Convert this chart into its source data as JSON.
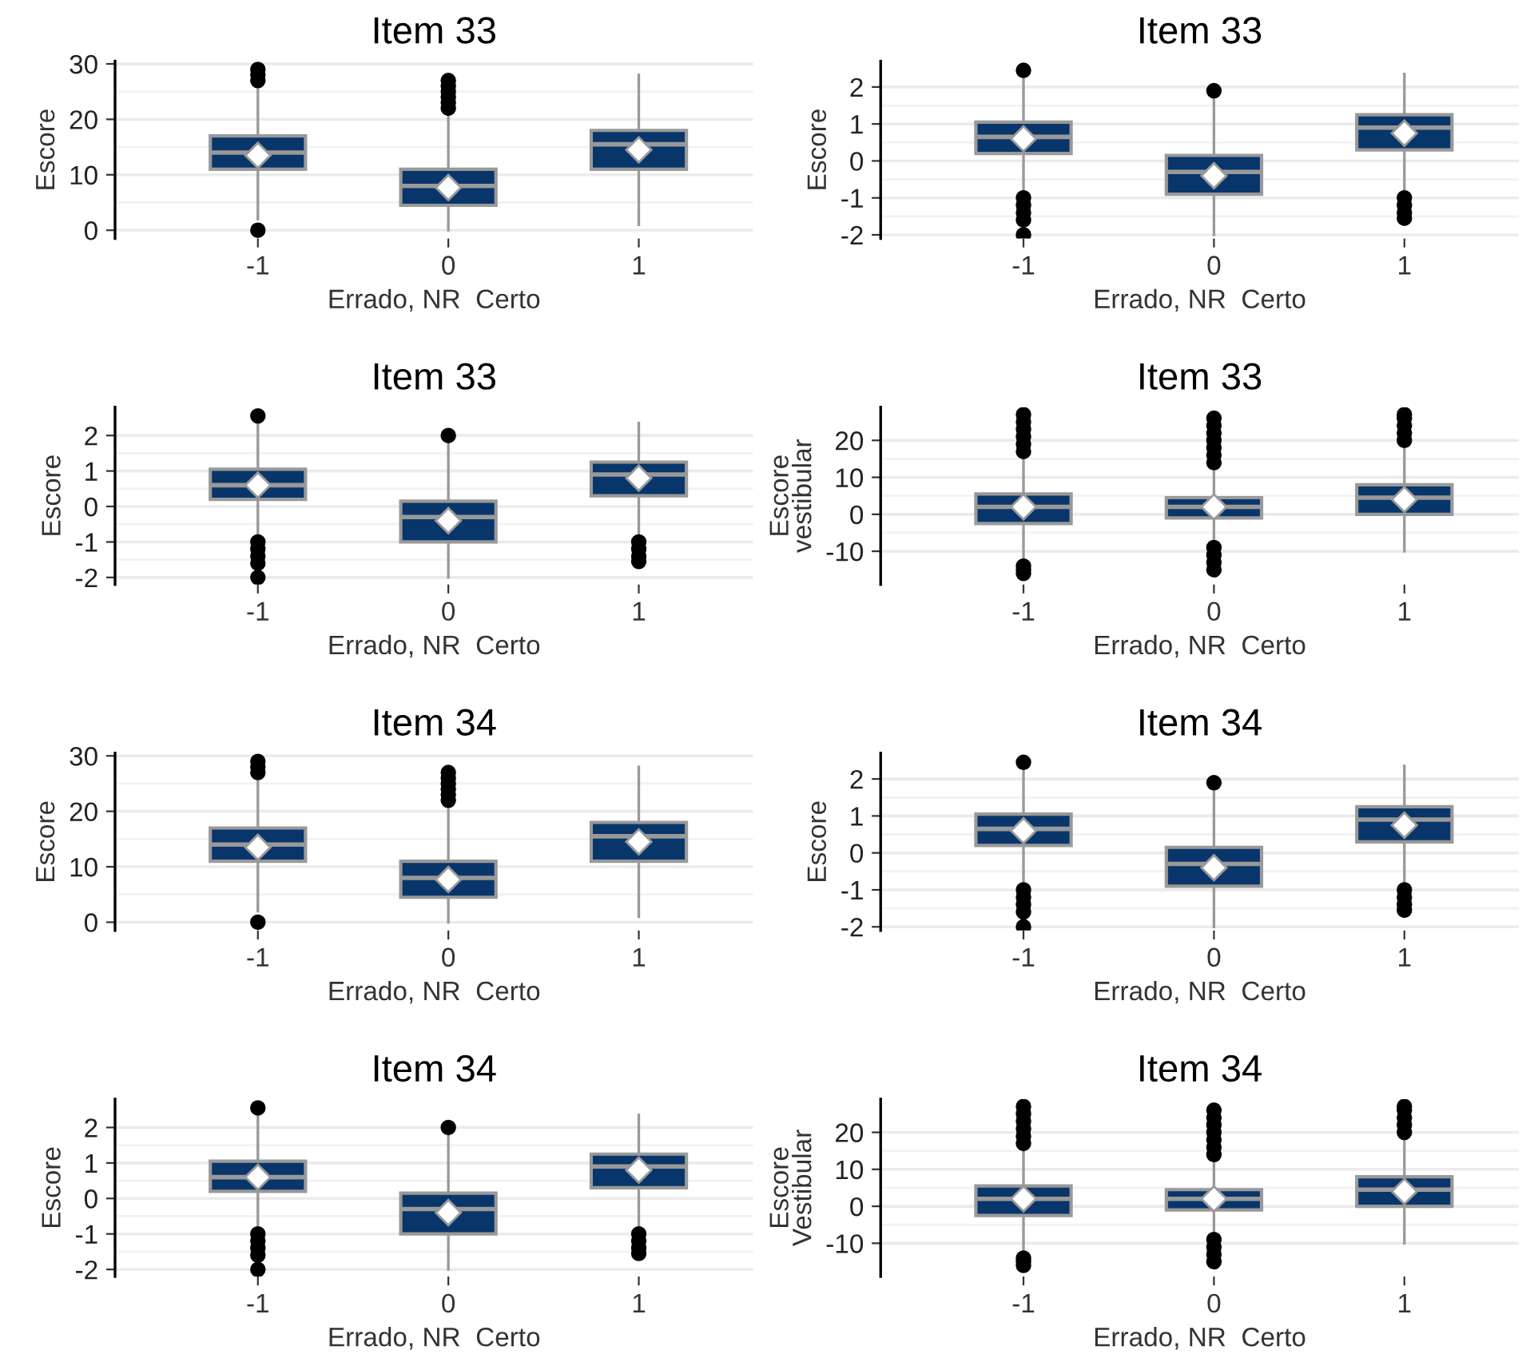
{
  "chart_data": [
    {
      "type": "box",
      "title": "Item 33",
      "xlabel": "Errado, NR  Certo",
      "ylabel": "Escore",
      "categories": [
        "-1",
        "0",
        "1"
      ],
      "color": "#08366b",
      "ylim": [
        -1.5,
        30.5
      ],
      "yticks": [
        0,
        10,
        20,
        30
      ],
      "grid": "y",
      "boxes": [
        {
          "low": 2,
          "q1": 11,
          "median": 14,
          "q3": 17,
          "high": 26,
          "mean": 13.5,
          "outliers": [
            0,
            27,
            28,
            29
          ]
        },
        {
          "low": 0,
          "q1": 4.5,
          "median": 8,
          "q3": 11,
          "high": 21,
          "mean": 7.7,
          "outliers": [
            22,
            23,
            24,
            25,
            26,
            27
          ]
        },
        {
          "low": 1,
          "q1": 11,
          "median": 15.5,
          "q3": 18,
          "high": 28,
          "mean": 14.5
        }
      ]
    },
    {
      "type": "box",
      "title": "Item 33",
      "xlabel": "Errado, NR  Certo",
      "ylabel": "Escore",
      "categories": [
        "-1",
        "0",
        "1"
      ],
      "color": "#08366b",
      "ylim": [
        -2.1,
        2.7
      ],
      "yticks": [
        -2,
        -1,
        0,
        1,
        2
      ],
      "grid": "y",
      "boxes": [
        {
          "low": -0.9,
          "q1": 0.2,
          "median": 0.65,
          "q3": 1.05,
          "high": 2.3,
          "mean": 0.6,
          "outliers": [
            2.45,
            -1.0,
            -1.2,
            -1.4,
            -1.6,
            -2.0
          ]
        },
        {
          "low": -2.0,
          "q1": -0.9,
          "median": -0.3,
          "q3": 0.15,
          "high": 1.8,
          "mean": -0.4,
          "outliers": [
            1.9
          ]
        },
        {
          "low": -0.9,
          "q1": 0.3,
          "median": 0.9,
          "q3": 1.25,
          "high": 2.35,
          "mean": 0.75,
          "outliers": [
            -1.0,
            -1.2,
            -1.4,
            -1.55
          ]
        }
      ]
    },
    {
      "type": "box",
      "title": "Item 33",
      "xlabel": "Errado, NR  Certo",
      "ylabel": "Escore",
      "categories": [
        "-1",
        "0",
        "1"
      ],
      "color": "#08366b",
      "ylim": [
        -2.2,
        2.8
      ],
      "yticks": [
        -2,
        -1,
        0,
        1,
        2
      ],
      "grid": "y",
      "boxes": [
        {
          "low": -0.9,
          "q1": 0.2,
          "median": 0.6,
          "q3": 1.05,
          "high": 2.3,
          "mean": 0.6,
          "outliers": [
            2.55,
            -1.0,
            -1.2,
            -1.4,
            -1.6,
            -2.0
          ]
        },
        {
          "low": -2.0,
          "q1": -1.0,
          "median": -0.3,
          "q3": 0.15,
          "high": 1.85,
          "mean": -0.4,
          "outliers": [
            2.0
          ]
        },
        {
          "low": -0.9,
          "q1": 0.3,
          "median": 0.9,
          "q3": 1.25,
          "high": 2.35,
          "mean": 0.8,
          "outliers": [
            -1.0,
            -1.2,
            -1.4,
            -1.55
          ]
        }
      ]
    },
    {
      "type": "box",
      "title": "Item 33",
      "xlabel": "Errado, NR  Certo",
      "ylabel": "Escore\nvestibular",
      "categories": [
        "-1",
        "0",
        "1"
      ],
      "color": "#08366b",
      "ylim": [
        -19,
        29
      ],
      "yticks": [
        -10,
        0,
        10,
        20
      ],
      "grid": "y",
      "boxes": [
        {
          "low": -13,
          "q1": -2.5,
          "median": 2,
          "q3": 5.5,
          "high": 16,
          "mean": 2,
          "outliers": [
            -14,
            -15,
            -16,
            17,
            19,
            21,
            23,
            25,
            27
          ]
        },
        {
          "low": -8,
          "q1": -1,
          "median": 2,
          "q3": 4.5,
          "high": 13,
          "mean": 2,
          "outliers": [
            -9,
            -11,
            -13,
            -15,
            14,
            16,
            18,
            20,
            22,
            24,
            26
          ]
        },
        {
          "low": -10,
          "q1": 0,
          "median": 4.5,
          "q3": 8,
          "high": 19,
          "mean": 4,
          "outliers": [
            20,
            22,
            24,
            26,
            27
          ]
        }
      ]
    },
    {
      "type": "box",
      "title": "Item 34",
      "xlabel": "Errado, NR  Certo",
      "ylabel": "Escore",
      "categories": [
        "-1",
        "0",
        "1"
      ],
      "color": "#08366b",
      "ylim": [
        -1.5,
        30.5
      ],
      "yticks": [
        0,
        10,
        20,
        30
      ],
      "grid": "y",
      "boxes": [
        {
          "low": 2,
          "q1": 11,
          "median": 14,
          "q3": 17,
          "high": 26,
          "mean": 13.5,
          "outliers": [
            0,
            27,
            28,
            29
          ]
        },
        {
          "low": 0,
          "q1": 4.5,
          "median": 8,
          "q3": 11,
          "high": 21,
          "mean": 7.7,
          "outliers": [
            22,
            23,
            24,
            25,
            26,
            27
          ]
        },
        {
          "low": 1,
          "q1": 11,
          "median": 15.5,
          "q3": 18,
          "high": 28,
          "mean": 14.5
        }
      ]
    },
    {
      "type": "box",
      "title": "Item 34",
      "xlabel": "Errado, NR  Certo",
      "ylabel": "Escore",
      "categories": [
        "-1",
        "0",
        "1"
      ],
      "color": "#08366b",
      "ylim": [
        -2.1,
        2.7
      ],
      "yticks": [
        -2,
        -1,
        0,
        1,
        2
      ],
      "grid": "y",
      "boxes": [
        {
          "low": -0.9,
          "q1": 0.2,
          "median": 0.65,
          "q3": 1.05,
          "high": 2.3,
          "mean": 0.6,
          "outliers": [
            2.45,
            -1.0,
            -1.2,
            -1.4,
            -1.6,
            -2.0
          ]
        },
        {
          "low": -2.0,
          "q1": -0.9,
          "median": -0.3,
          "q3": 0.15,
          "high": 1.8,
          "mean": -0.4,
          "outliers": [
            1.9
          ]
        },
        {
          "low": -0.9,
          "q1": 0.3,
          "median": 0.9,
          "q3": 1.25,
          "high": 2.35,
          "mean": 0.75,
          "outliers": [
            -1.0,
            -1.2,
            -1.4,
            -1.55
          ]
        }
      ]
    },
    {
      "type": "box",
      "title": "Item 34",
      "xlabel": "Errado, NR  Certo",
      "ylabel": "Escore",
      "categories": [
        "-1",
        "0",
        "1"
      ],
      "color": "#08366b",
      "ylim": [
        -2.2,
        2.8
      ],
      "yticks": [
        -2,
        -1,
        0,
        1,
        2
      ],
      "grid": "y",
      "boxes": [
        {
          "low": -0.9,
          "q1": 0.2,
          "median": 0.6,
          "q3": 1.05,
          "high": 2.3,
          "mean": 0.6,
          "outliers": [
            2.55,
            -1.0,
            -1.2,
            -1.4,
            -1.6,
            -2.0
          ]
        },
        {
          "low": -2.0,
          "q1": -1.0,
          "median": -0.3,
          "q3": 0.15,
          "high": 1.85,
          "mean": -0.4,
          "outliers": [
            2.0
          ]
        },
        {
          "low": -0.9,
          "q1": 0.3,
          "median": 0.9,
          "q3": 1.25,
          "high": 2.35,
          "mean": 0.8,
          "outliers": [
            -1.0,
            -1.2,
            -1.4,
            -1.55
          ]
        }
      ]
    },
    {
      "type": "box",
      "title": "Item 34",
      "xlabel": "Errado, NR  Certo",
      "ylabel": "Escore\nVestibular",
      "categories": [
        "-1",
        "0",
        "1"
      ],
      "color": "#08366b",
      "ylim": [
        -19,
        29
      ],
      "yticks": [
        -10,
        0,
        10,
        20
      ],
      "grid": "y",
      "boxes": [
        {
          "low": -13,
          "q1": -2.5,
          "median": 2,
          "q3": 5.5,
          "high": 16,
          "mean": 2,
          "outliers": [
            -14,
            -15,
            -16,
            17,
            19,
            21,
            23,
            25,
            27
          ]
        },
        {
          "low": -8,
          "q1": -1,
          "median": 2,
          "q3": 4.5,
          "high": 13,
          "mean": 2,
          "outliers": [
            -9,
            -11,
            -13,
            -15,
            14,
            16,
            18,
            20,
            22,
            24,
            26
          ]
        },
        {
          "low": -10,
          "q1": 0,
          "median": 4.5,
          "q3": 8,
          "high": 19,
          "mean": 4,
          "outliers": [
            20,
            22,
            24,
            26,
            27
          ]
        }
      ]
    }
  ]
}
